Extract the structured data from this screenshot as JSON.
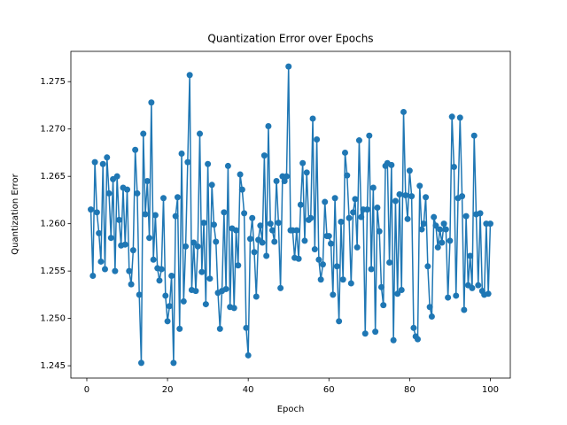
{
  "chart_data": {
    "type": "line",
    "title": "Quantization Error over Epochs",
    "x_label": "Epoch",
    "y_label": "Quantization Error",
    "x": [
      1,
      1.5,
      2,
      2.5,
      3,
      3.5,
      4,
      4.5,
      5,
      5.5,
      6,
      6.5,
      7,
      7.5,
      8,
      8.5,
      9,
      9.5,
      10,
      10.5,
      11,
      11.5,
      12,
      12.5,
      13,
      13.5,
      14,
      14.5,
      15,
      15.5,
      16,
      16.5,
      17,
      17.5,
      18,
      18.5,
      19,
      19.5,
      20,
      20.5,
      21,
      21.5,
      22,
      22.5,
      23,
      23.5,
      24,
      24.5,
      25,
      25.5,
      26,
      26.5,
      27,
      27.5,
      28,
      28.5,
      29,
      29.5,
      30,
      30.5,
      31,
      31.5,
      32,
      32.5,
      33,
      33.5,
      34,
      34.5,
      35,
      35.5,
      36,
      36.5,
      37,
      37.5,
      38,
      38.5,
      39,
      39.5,
      40,
      40.5,
      41,
      41.5,
      42,
      42.5,
      43,
      43.5,
      44,
      44.5,
      45,
      45.5,
      46,
      46.5,
      47,
      47.5,
      48,
      48.5,
      49,
      49.5,
      50,
      50.5,
      51,
      51.5,
      52,
      52.5,
      53,
      53.5,
      54,
      54.5,
      55,
      55.5,
      56,
      56.5,
      57,
      57.5,
      58,
      58.5,
      59,
      59.5,
      60,
      60.5,
      61,
      61.5,
      62,
      62.5,
      63,
      63.5,
      64,
      64.5,
      65,
      65.5,
      66,
      66.5,
      67,
      67.5,
      68,
      68.5,
      69,
      69.5,
      70,
      70.5,
      71,
      71.5,
      72,
      72.5,
      73,
      73.5,
      74,
      74.5,
      75,
      75.5,
      76,
      76.5,
      77,
      77.5,
      78,
      78.5,
      79,
      79.5,
      80,
      80.5,
      81,
      81.5,
      82,
      82.5,
      83,
      83.5,
      84,
      84.5,
      85,
      85.5,
      86,
      86.5,
      87,
      87.5,
      88,
      88.5,
      89,
      89.5,
      90,
      90.5,
      91,
      91.5,
      92,
      92.5,
      93,
      93.5,
      94,
      94.5,
      95,
      95.5,
      96,
      96.5,
      97,
      97.5,
      98,
      98.5,
      99,
      99.5,
      100
    ],
    "series": [
      {
        "name": "Quantization Error",
        "color": "#1f77b4",
        "values": [
          1.2615,
          1.2545,
          1.2665,
          1.2612,
          1.259,
          1.256,
          1.2663,
          1.2552,
          1.267,
          1.2632,
          1.2585,
          1.2647,
          1.255,
          1.265,
          1.2604,
          1.2577,
          1.2638,
          1.2578,
          1.2636,
          1.255,
          1.2536,
          1.2572,
          1.2678,
          1.2632,
          1.2525,
          1.2453,
          1.2695,
          1.261,
          1.2645,
          1.2585,
          1.2728,
          1.2562,
          1.2609,
          1.2553,
          1.254,
          1.2552,
          1.2627,
          1.2524,
          1.2497,
          1.2513,
          1.2545,
          1.2453,
          1.2608,
          1.2628,
          1.2489,
          1.2674,
          1.2518,
          1.2576,
          1.2665,
          1.2757,
          1.253,
          1.258,
          1.2529,
          1.2576,
          1.2695,
          1.2549,
          1.2601,
          1.2515,
          1.2663,
          1.2542,
          1.2641,
          1.2599,
          1.2581,
          1.2527,
          1.2489,
          1.2529,
          1.2612,
          1.2531,
          1.2661,
          1.2512,
          1.2595,
          1.2511,
          1.2593,
          1.2556,
          1.2652,
          1.2636,
          1.2611,
          1.249,
          1.2461,
          1.2584,
          1.2606,
          1.257,
          1.2523,
          1.2583,
          1.2598,
          1.258,
          1.2672,
          1.2566,
          1.2703,
          1.26,
          1.2593,
          1.2581,
          1.2645,
          1.2601,
          1.2532,
          1.265,
          1.2645,
          1.265,
          1.2766,
          1.2593,
          1.2593,
          1.2564,
          1.2593,
          1.2563,
          1.262,
          1.2664,
          1.2582,
          1.2654,
          1.2604,
          1.2606,
          1.2711,
          1.2573,
          1.2689,
          1.2562,
          1.2541,
          1.2557,
          1.2623,
          1.2587,
          1.2587,
          1.2579,
          1.2525,
          1.2627,
          1.2555,
          1.2497,
          1.2602,
          1.2541,
          1.2675,
          1.2651,
          1.2606,
          1.2537,
          1.2612,
          1.2626,
          1.2575,
          1.2688,
          1.2607,
          1.2615,
          1.2484,
          1.2615,
          1.2693,
          1.2552,
          1.2638,
          1.2486,
          1.2617,
          1.2592,
          1.2533,
          1.2514,
          1.2661,
          1.2664,
          1.2559,
          1.2662,
          1.2477,
          1.2624,
          1.2526,
          1.2631,
          1.253,
          1.2718,
          1.263,
          1.2605,
          1.2656,
          1.2629,
          1.249,
          1.2481,
          1.2478,
          1.264,
          1.2594,
          1.26,
          1.2628,
          1.2555,
          1.2512,
          1.2502,
          1.2607,
          1.2598,
          1.2575,
          1.2594,
          1.258,
          1.26,
          1.2594,
          1.2522,
          1.2582,
          1.2713,
          1.266,
          1.2524,
          1.2627,
          1.2712,
          1.2629,
          1.2509,
          1.2608,
          1.2535,
          1.2566,
          1.2532,
          1.2693,
          1.261,
          1.2535,
          1.2611,
          1.2529,
          1.2525,
          1.26,
          1.2526,
          1.26
        ]
      }
    ],
    "xlim": [
      -3.95,
      104.95
    ],
    "xticks": [
      0,
      20,
      40,
      60,
      80,
      100
    ],
    "ylim": [
      1.2437,
      1.2782
    ],
    "yticks": [
      1.245,
      {
        "value": 1.25,
        "label": "1.250"
      },
      1.255,
      {
        "value": 1.26,
        "label": "1.260"
      },
      1.265,
      {
        "value": 1.27,
        "label": "1.270"
      },
      1.275
    ],
    "grid": false
  }
}
